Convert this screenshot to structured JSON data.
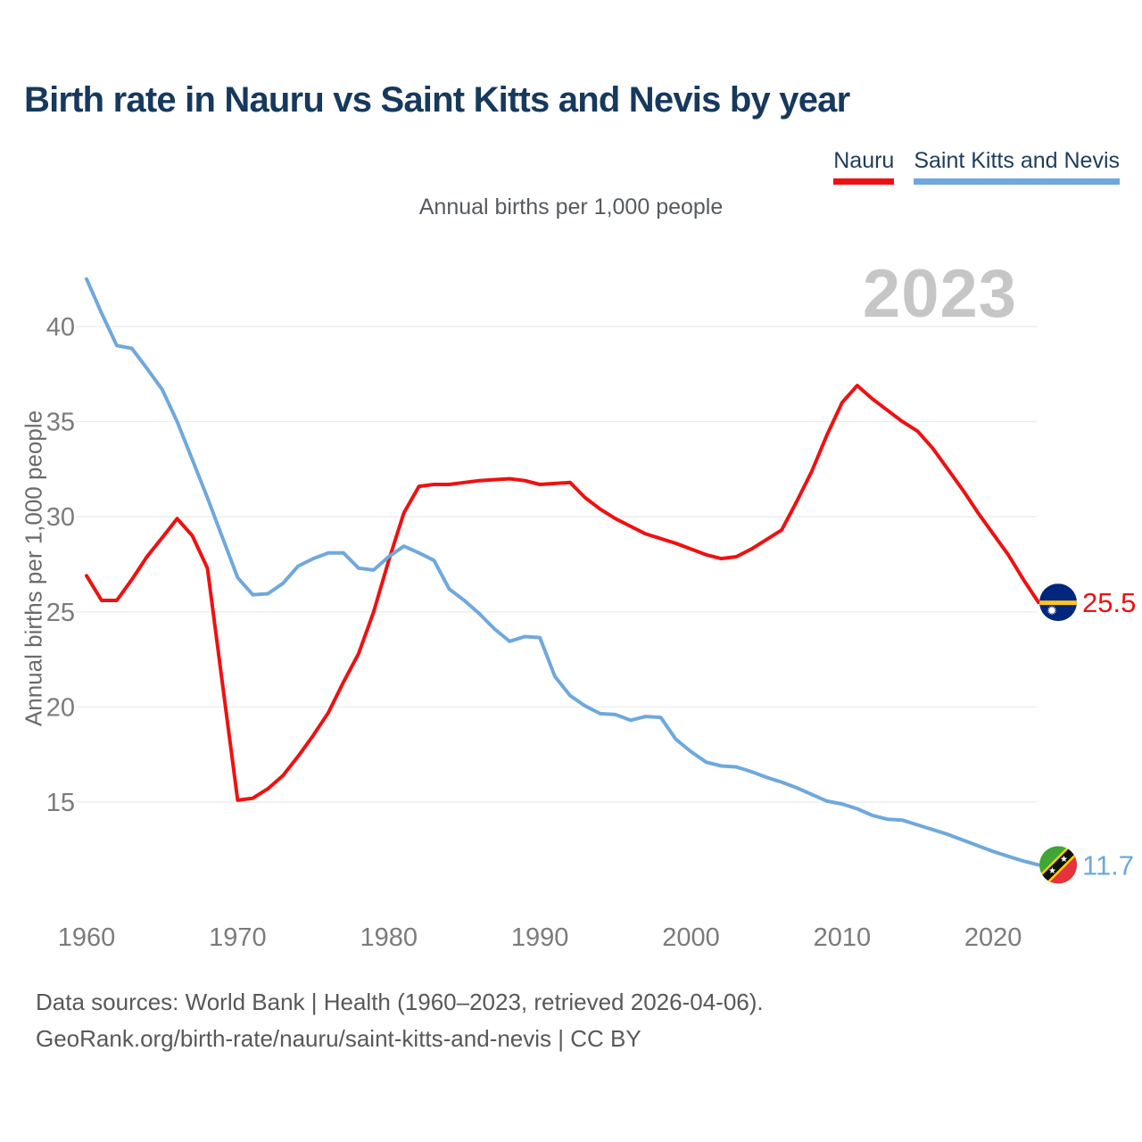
{
  "title": "Birth rate in Nauru vs Saint Kitts and Nevis by year",
  "subtitle": "Annual births per 1,000 people",
  "watermark": "2023",
  "ylabel": "Annual births per 1,000 people",
  "legend": [
    {
      "label": "Nauru",
      "color": "#ee1111"
    },
    {
      "label": "Saint Kitts and Nevis",
      "color": "#6fa8dc"
    }
  ],
  "footer": {
    "line1": "Data sources: World Bank | Health (1960–2023, retrieved 2026-04-06).",
    "line2": "GeoRank.org/birth-rate/nauru/saint-kitts-and-nevis | CC BY"
  },
  "chart_data": {
    "type": "line",
    "title": "Birth rate in Nauru vs Saint Kitts and Nevis by year",
    "ylabel": "Annual births per 1,000 people",
    "grid": true,
    "legend_position": "top-right",
    "xlim": [
      1960,
      2023
    ],
    "ylim": [
      11,
      43.5
    ],
    "xticks": [
      1960,
      1970,
      1980,
      1990,
      2000,
      2010,
      2020
    ],
    "yticks": [
      15,
      20,
      25,
      30,
      35,
      40
    ],
    "x": [
      1960,
      1961,
      1962,
      1963,
      1964,
      1965,
      1966,
      1967,
      1968,
      1969,
      1970,
      1971,
      1972,
      1973,
      1974,
      1975,
      1976,
      1977,
      1978,
      1979,
      1980,
      1981,
      1982,
      1983,
      1984,
      1985,
      1986,
      1987,
      1988,
      1989,
      1990,
      1991,
      1992,
      1993,
      1994,
      1995,
      1996,
      1997,
      1998,
      1999,
      2000,
      2001,
      2002,
      2003,
      2004,
      2005,
      2006,
      2007,
      2008,
      2009,
      2010,
      2011,
      2012,
      2013,
      2014,
      2015,
      2016,
      2017,
      2018,
      2019,
      2020,
      2021,
      2022,
      2023
    ],
    "series": [
      {
        "name": "Nauru",
        "color": "#ee1111",
        "end_label": "25.5",
        "flag": "nauru",
        "values": [
          26.9,
          25.6,
          25.6,
          26.7,
          27.9,
          28.9,
          29.9,
          29.0,
          27.3,
          21.2,
          15.1,
          15.2,
          15.7,
          16.4,
          17.4,
          18.5,
          19.7,
          21.3,
          22.8,
          25.0,
          27.7,
          30.2,
          31.6,
          31.7,
          31.7,
          31.8,
          31.9,
          31.95,
          32.0,
          31.9,
          31.7,
          31.75,
          31.8,
          31.0,
          30.4,
          29.9,
          29.5,
          29.1,
          28.85,
          28.6,
          28.3,
          28.0,
          27.8,
          27.9,
          28.3,
          28.8,
          29.3,
          30.8,
          32.4,
          34.3,
          36.0,
          36.9,
          36.2,
          35.6,
          35.0,
          34.5,
          33.6,
          32.5,
          31.4,
          30.2,
          29.1,
          28.0,
          26.7,
          25.5
        ]
      },
      {
        "name": "Saint Kitts and Nevis",
        "color": "#6fa8dc",
        "end_label": "11.7",
        "flag": "saint-kitts-and-nevis",
        "values": [
          42.5,
          40.7,
          39.0,
          38.85,
          37.8,
          36.7,
          35.0,
          33.0,
          31.0,
          28.9,
          26.8,
          25.9,
          25.95,
          26.5,
          27.4,
          27.8,
          28.1,
          28.1,
          27.3,
          27.2,
          27.9,
          28.45,
          28.1,
          27.7,
          26.2,
          25.6,
          24.9,
          24.1,
          23.45,
          23.7,
          23.65,
          21.6,
          20.6,
          20.05,
          19.65,
          19.6,
          19.3,
          19.5,
          19.45,
          18.3,
          17.65,
          17.1,
          16.9,
          16.85,
          16.6,
          16.3,
          16.05,
          15.75,
          15.4,
          15.05,
          14.9,
          14.65,
          14.3,
          14.1,
          14.05,
          13.8,
          13.55,
          13.3,
          13.0,
          12.7,
          12.4,
          12.15,
          11.9,
          11.7
        ]
      }
    ],
    "flag_colors": {
      "nauru": {
        "field": "#01267d",
        "stripe": "#ffc61e",
        "star": "#ffffff"
      },
      "saint-kitts-and-nevis": {
        "green": "#3fa535",
        "red": "#e5323b",
        "band": "#111111",
        "band_edge": "#ffd100",
        "stars": "#ffffff"
      }
    }
  }
}
